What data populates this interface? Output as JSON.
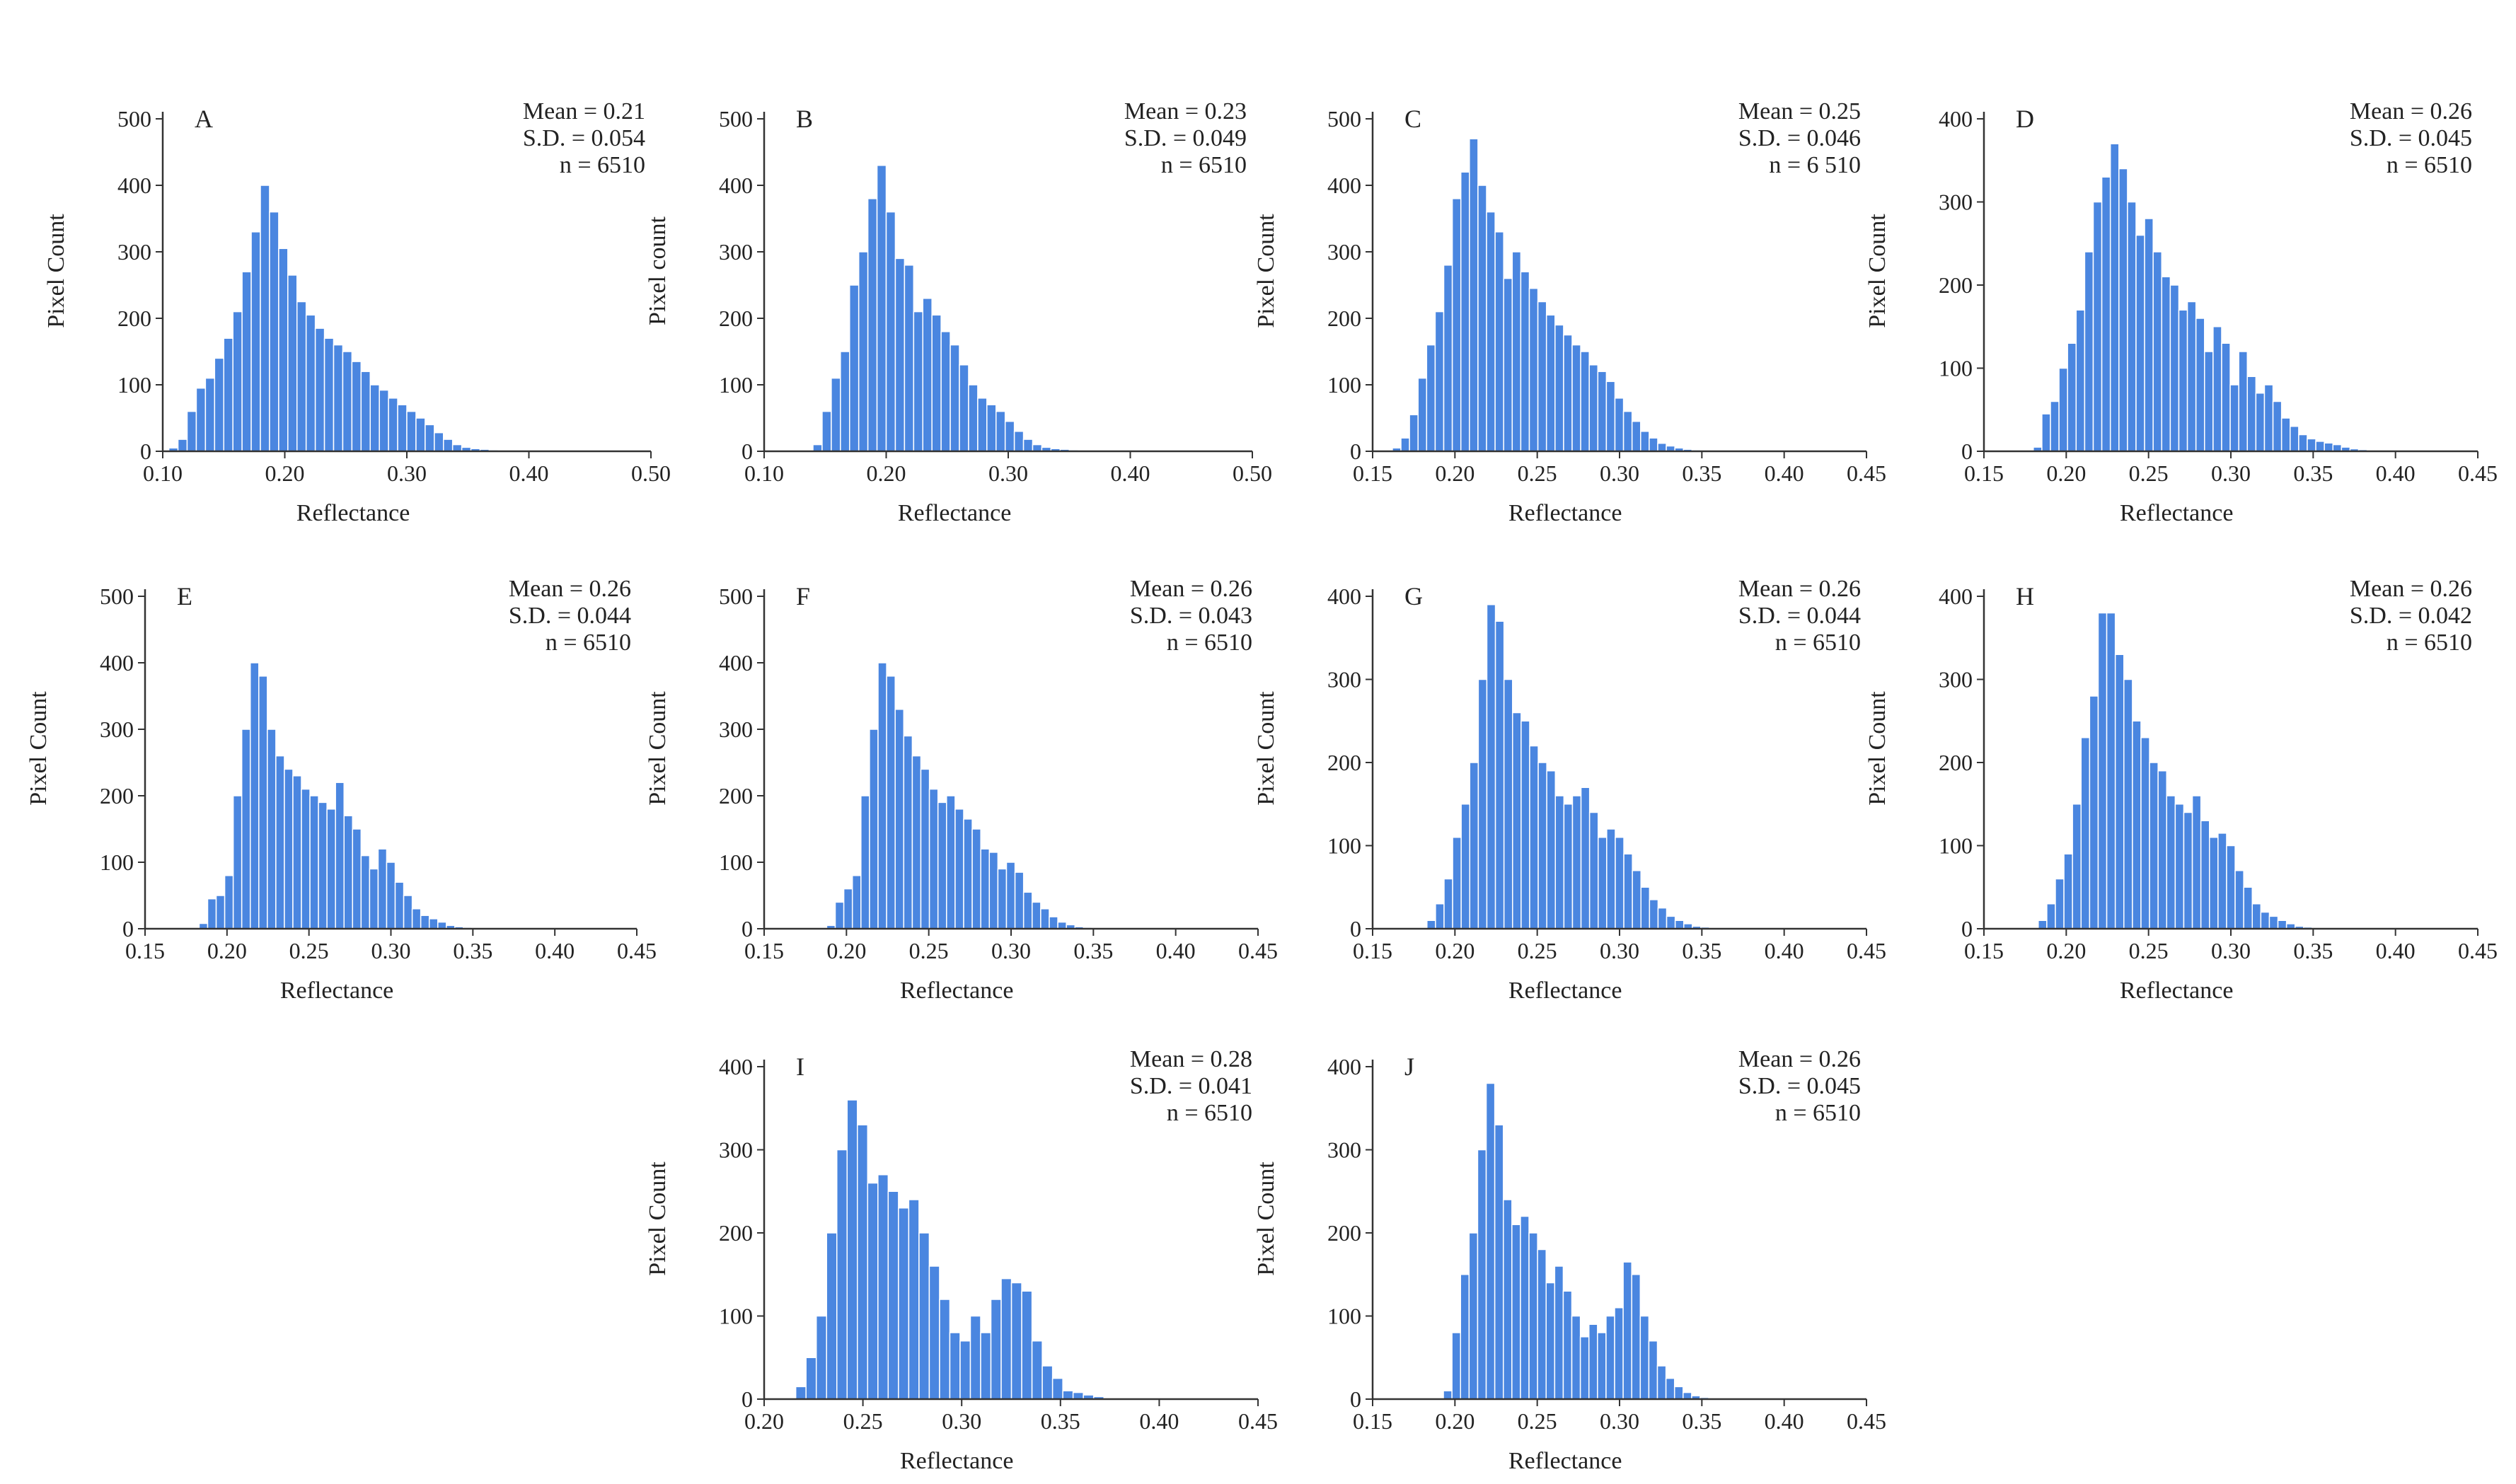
{
  "chart_data": [
    {
      "type": "bar",
      "panel": "A",
      "ylabel": "Pixel Count",
      "xlabel": "Reflectance",
      "xlim": [
        0.1,
        0.5
      ],
      "ylim": [
        0,
        500
      ],
      "x_ticks": [
        "0.10",
        "0.20",
        "0.30",
        "0.40",
        "0.50"
      ],
      "y_ticks": [
        "0",
        "100",
        "200",
        "300",
        "400",
        "500"
      ],
      "mean_text": "Mean = 0.21",
      "sd_text": "S.D. = 0.054",
      "n_text": "n = 6510",
      "bin_start": 0.105,
      "bin_width": 0.0075,
      "values": [
        5,
        18,
        60,
        95,
        110,
        140,
        170,
        210,
        270,
        330,
        400,
        360,
        305,
        265,
        225,
        205,
        185,
        170,
        160,
        150,
        135,
        120,
        100,
        92,
        80,
        70,
        60,
        50,
        40,
        28,
        18,
        10,
        6,
        4,
        3,
        2,
        1
      ]
    },
    {
      "type": "bar",
      "panel": "B",
      "ylabel": "Pixel count",
      "xlabel": "Reflectance",
      "xlim": [
        0.1,
        0.5
      ],
      "ylim": [
        0,
        500
      ],
      "x_ticks": [
        "0.10",
        "0.20",
        "0.30",
        "0.40",
        "0.50"
      ],
      "y_ticks": [
        "0",
        "100",
        "200",
        "300",
        "400",
        "500"
      ],
      "mean_text": "Mean = 0.23",
      "sd_text": "S.D. = 0.049",
      "n_text": "n = 6510",
      "bin_start": 0.14,
      "bin_width": 0.0075,
      "values": [
        10,
        60,
        110,
        150,
        250,
        300,
        380,
        430,
        360,
        290,
        280,
        210,
        230,
        205,
        180,
        160,
        130,
        100,
        80,
        70,
        60,
        45,
        30,
        18,
        10,
        6,
        4,
        3,
        2,
        1
      ]
    },
    {
      "type": "bar",
      "panel": "C",
      "ylabel": "Pixel Count",
      "xlabel": "Reflectance",
      "xlim": [
        0.15,
        0.45
      ],
      "ylim": [
        0,
        500
      ],
      "x_ticks": [
        "0.15",
        "0.20",
        "0.25",
        "0.30",
        "0.35",
        "0.40",
        "0.45"
      ],
      "y_ticks": [
        "0",
        "100",
        "200",
        "300",
        "400",
        "500"
      ],
      "mean_text": "Mean = 0.25",
      "sd_text": "S.D. = 0.046",
      "n_text": "n = 6 510",
      "bin_start": 0.162,
      "bin_width": 0.0052,
      "values": [
        5,
        20,
        55,
        110,
        160,
        210,
        280,
        380,
        420,
        470,
        400,
        360,
        330,
        260,
        300,
        270,
        245,
        225,
        205,
        190,
        175,
        160,
        150,
        130,
        120,
        105,
        80,
        60,
        45,
        30,
        20,
        12,
        8,
        5,
        3,
        2,
        1
      ]
    },
    {
      "type": "bar",
      "panel": "D",
      "ylabel": "Pixel Count",
      "xlabel": "Reflectance",
      "xlim": [
        0.15,
        0.45
      ],
      "ylim": [
        0,
        400
      ],
      "x_ticks": [
        "0.15",
        "0.20",
        "0.25",
        "0.30",
        "0.35",
        "0.40",
        "0.45"
      ],
      "y_ticks": [
        "0",
        "100",
        "200",
        "300",
        "400"
      ],
      "mean_text": "Mean = 0.26",
      "sd_text": "S.D. = 0.045",
      "n_text": "n = 6510",
      "bin_start": 0.18,
      "bin_width": 0.0052,
      "values": [
        5,
        45,
        60,
        100,
        130,
        170,
        240,
        300,
        330,
        370,
        340,
        300,
        260,
        280,
        240,
        210,
        200,
        170,
        180,
        160,
        120,
        150,
        130,
        80,
        120,
        90,
        70,
        80,
        60,
        40,
        30,
        20,
        15,
        12,
        10,
        8,
        5,
        3,
        2,
        1
      ]
    },
    {
      "type": "bar",
      "panel": "E",
      "ylabel": "Pixel Count",
      "xlabel": "Reflectance",
      "xlim": [
        0.15,
        0.45
      ],
      "ylim": [
        0,
        500
      ],
      "x_ticks": [
        "0.15",
        "0.20",
        "0.25",
        "0.30",
        "0.35",
        "0.40",
        "0.45"
      ],
      "y_ticks": [
        "0",
        "100",
        "200",
        "300",
        "400",
        "500"
      ],
      "mean_text": "Mean = 0.26",
      "sd_text": "S.D. = 0.044",
      "n_text": "n = 6510",
      "bin_start": 0.183,
      "bin_width": 0.0052,
      "values": [
        8,
        45,
        50,
        80,
        200,
        300,
        400,
        380,
        300,
        260,
        240,
        230,
        210,
        200,
        190,
        180,
        220,
        170,
        150,
        110,
        90,
        120,
        100,
        70,
        50,
        30,
        20,
        15,
        10,
        5,
        3,
        2,
        1
      ]
    },
    {
      "type": "bar",
      "panel": "F",
      "ylabel": "Pixel Count",
      "xlabel": "Reflectance",
      "xlim": [
        0.15,
        0.45
      ],
      "ylim": [
        0,
        500
      ],
      "x_ticks": [
        "0.15",
        "0.20",
        "0.25",
        "0.30",
        "0.35",
        "0.40",
        "0.45"
      ],
      "y_ticks": [
        "0",
        "100",
        "200",
        "300",
        "400",
        "500"
      ],
      "mean_text": "Mean = 0.26",
      "sd_text": "S.D. = 0.043",
      "n_text": "n = 6510",
      "bin_start": 0.188,
      "bin_width": 0.0052,
      "values": [
        5,
        40,
        60,
        80,
        200,
        300,
        400,
        380,
        330,
        290,
        260,
        240,
        210,
        190,
        200,
        180,
        165,
        150,
        120,
        115,
        90,
        100,
        85,
        55,
        40,
        30,
        18,
        10,
        6,
        3,
        2,
        1
      ]
    },
    {
      "type": "bar",
      "panel": "G",
      "ylabel": "Pixel Count",
      "xlabel": "Reflectance",
      "xlim": [
        0.15,
        0.45
      ],
      "ylim": [
        0,
        400
      ],
      "x_ticks": [
        "0.15",
        "0.20",
        "0.25",
        "0.30",
        "0.35",
        "0.40",
        "0.45"
      ],
      "y_ticks": [
        "0",
        "100",
        "200",
        "300",
        "400"
      ],
      "mean_text": "Mean = 0.26",
      "sd_text": "S.D. = 0.044",
      "n_text": "n = 6510",
      "bin_start": 0.183,
      "bin_width": 0.0052,
      "values": [
        10,
        30,
        60,
        110,
        150,
        200,
        300,
        390,
        370,
        300,
        260,
        250,
        220,
        200,
        190,
        160,
        150,
        160,
        170,
        140,
        110,
        120,
        110,
        90,
        70,
        50,
        35,
        25,
        15,
        10,
        6,
        3,
        2,
        1
      ]
    },
    {
      "type": "bar",
      "panel": "H",
      "ylabel": "Pixel Count",
      "xlabel": "Reflectance",
      "xlim": [
        0.15,
        0.45
      ],
      "ylim": [
        0,
        400
      ],
      "x_ticks": [
        "0.15",
        "0.20",
        "0.25",
        "0.30",
        "0.35",
        "0.40",
        "0.45"
      ],
      "y_ticks": [
        "0",
        "100",
        "200",
        "300",
        "400"
      ],
      "mean_text": "Mean = 0.26",
      "sd_text": "S.D. = 0.042",
      "n_text": "n = 6510",
      "bin_start": 0.183,
      "bin_width": 0.0052,
      "values": [
        10,
        30,
        60,
        90,
        150,
        230,
        280,
        380,
        380,
        330,
        300,
        250,
        230,
        200,
        190,
        160,
        150,
        140,
        160,
        130,
        110,
        115,
        100,
        70,
        50,
        30,
        20,
        15,
        10,
        6,
        3,
        2,
        1
      ]
    },
    {
      "type": "bar",
      "panel": "I",
      "ylabel": "Pixel Count",
      "xlabel": "Reflectance",
      "xlim": [
        0.2,
        0.45
      ],
      "ylim": [
        0,
        400
      ],
      "x_ticks": [
        "0.20",
        "0.25",
        "0.30",
        "0.35",
        "0.40",
        "0.45"
      ],
      "y_ticks": [
        "0",
        "100",
        "200",
        "300",
        "400"
      ],
      "mean_text": "Mean = 0.28",
      "sd_text": "S.D. = 0.041",
      "n_text": "n = 6510",
      "bin_start": 0.216,
      "bin_width": 0.0052,
      "values": [
        15,
        50,
        100,
        200,
        300,
        360,
        330,
        260,
        270,
        250,
        230,
        240,
        200,
        160,
        120,
        80,
        70,
        100,
        80,
        120,
        145,
        140,
        130,
        70,
        40,
        25,
        10,
        8,
        5,
        3,
        1
      ]
    },
    {
      "type": "bar",
      "panel": "J",
      "ylabel": "Pixel Count",
      "xlabel": "Reflectance",
      "xlim": [
        0.15,
        0.45
      ],
      "ylim": [
        0,
        400
      ],
      "x_ticks": [
        "0.15",
        "0.20",
        "0.25",
        "0.30",
        "0.35",
        "0.40",
        "0.45"
      ],
      "y_ticks": [
        "0",
        "100",
        "200",
        "300",
        "400"
      ],
      "mean_text": "Mean = 0.26",
      "sd_text": "S.D. = 0.045",
      "n_text": "n = 6510",
      "bin_start": 0.193,
      "bin_width": 0.0052,
      "values": [
        10,
        80,
        150,
        200,
        300,
        380,
        330,
        240,
        210,
        220,
        200,
        180,
        140,
        160,
        130,
        100,
        75,
        90,
        80,
        100,
        110,
        165,
        150,
        100,
        70,
        40,
        25,
        15,
        8,
        4,
        2,
        1
      ]
    }
  ]
}
